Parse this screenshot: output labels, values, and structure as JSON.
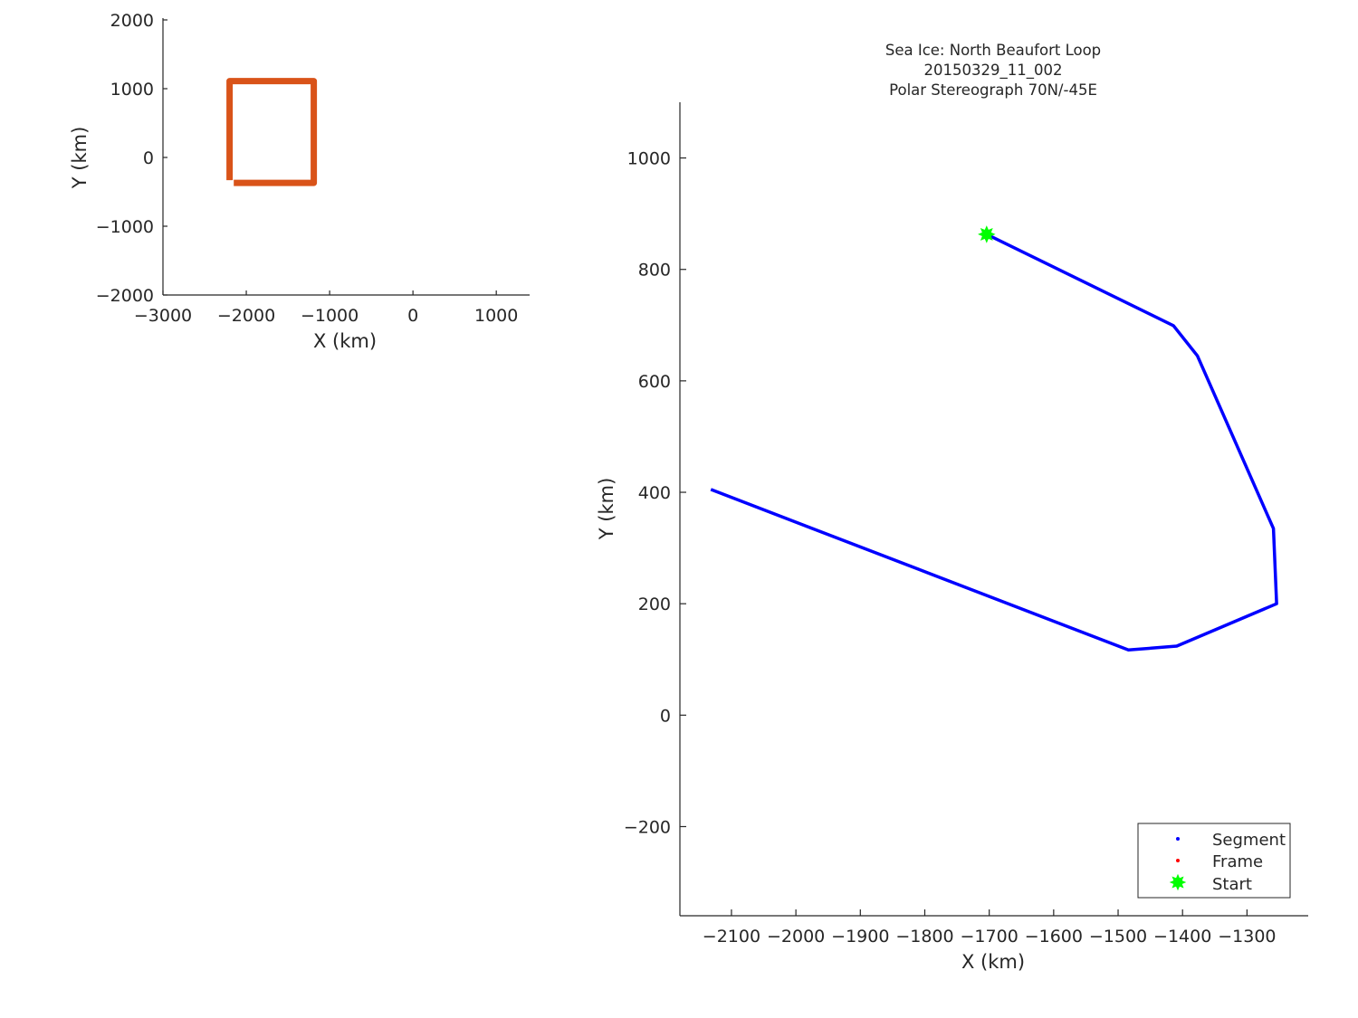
{
  "chart_data": [
    {
      "type": "line",
      "id": "overview",
      "title": "",
      "xlabel": "X (km)",
      "ylabel": "Y (km)",
      "xlim": [
        -3000,
        1400
      ],
      "ylim": [
        -2000,
        2000
      ],
      "xticks": [
        -3000,
        -2000,
        -1000,
        0,
        1000
      ],
      "yticks": [
        -2000,
        -1000,
        0,
        1000,
        2000
      ],
      "grid": false,
      "series": [
        {
          "color": "#d95319",
          "x": [
            -2200,
            -2200,
            -1190,
            -1190,
            -2150
          ],
          "y": [
            -330,
            1110,
            1110,
            -370,
            -370
          ]
        }
      ]
    },
    {
      "type": "line",
      "id": "track",
      "title": [
        "Sea Ice: North Beaufort Loop",
        "20150329_11_002",
        "Polar Stereograph 70N/-45E"
      ],
      "xlabel": "X (km)",
      "ylabel": "Y (km)",
      "xlim": [
        -2180,
        -1205
      ],
      "ylim": [
        -360,
        1100
      ],
      "xticks": [
        -2100,
        -2000,
        -1900,
        -1800,
        -1700,
        -1600,
        -1500,
        -1400,
        -1300
      ],
      "yticks": [
        -200,
        0,
        200,
        400,
        600,
        800,
        1000
      ],
      "grid": false,
      "legend_position": "bottom-right",
      "series": [
        {
          "name": "Segment",
          "color": "#0000ff",
          "x": [
            -1704,
            -1414,
            -1377,
            -1259,
            -1254,
            -1409,
            -1484,
            -2132
          ],
          "y": [
            863,
            699,
            645,
            335,
            200,
            124,
            117,
            405
          ]
        },
        {
          "name": "Frame",
          "color": "#ff0000",
          "x": [],
          "y": []
        },
        {
          "name": "Start",
          "color": "#00ff00",
          "marker": "star",
          "x": [
            -1704
          ],
          "y": [
            863
          ]
        }
      ]
    }
  ]
}
